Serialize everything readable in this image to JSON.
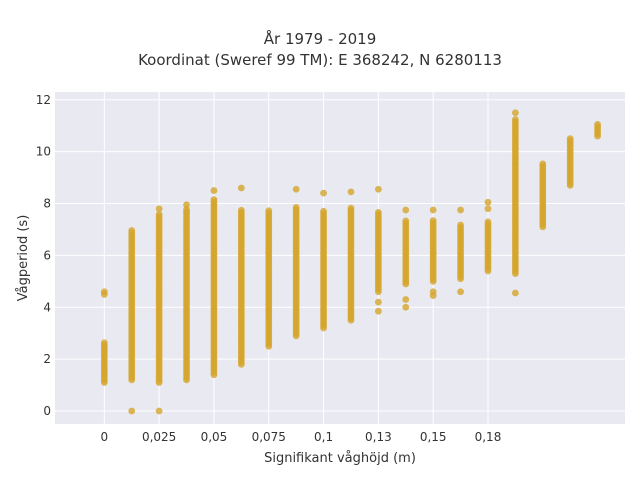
{
  "chart_data": {
    "type": "scatter",
    "title_line1": "År 1979 - 2019",
    "title_line2": "Koordinat (Sweref 99 TM): E 368242, N 6280113",
    "xlabel": "Signifikant våghöjd (m)",
    "ylabel": "Vågperiod (s)",
    "xlim": [
      -0.018,
      0.19
    ],
    "ylim": [
      -0.5,
      12.3
    ],
    "x_ticks": [
      {
        "value": 0,
        "label": "0"
      },
      {
        "value": 0.02,
        "label": "0,025"
      },
      {
        "value": 0.04,
        "label": "0,05"
      },
      {
        "value": 0.06,
        "label": "0,075"
      },
      {
        "value": 0.08,
        "label": "0,1"
      },
      {
        "value": 0.1,
        "label": "0,13"
      },
      {
        "value": 0.12,
        "label": "0,15"
      },
      {
        "value": 0.14,
        "label": "0,18"
      }
    ],
    "y_ticks": [
      {
        "value": 0,
        "label": "0"
      },
      {
        "value": 2,
        "label": "2"
      },
      {
        "value": 4,
        "label": "4"
      },
      {
        "value": 6,
        "label": "6"
      },
      {
        "value": 8,
        "label": "8"
      },
      {
        "value": 10,
        "label": "10"
      },
      {
        "value": 12,
        "label": "12"
      }
    ],
    "grid": true,
    "marker_color": "#d4a52a",
    "background_color": "#e9e9f1",
    "columns": [
      {
        "x": 0,
        "ymin": 1.1,
        "ymax": 2.7,
        "extra": [
          4.5,
          4.6
        ]
      },
      {
        "x": 0.01,
        "ymin": 1.2,
        "ymax": 7.0,
        "extra": [
          0.0
        ]
      },
      {
        "x": 0.02,
        "ymin": 1.1,
        "ymax": 7.6,
        "extra": [
          0.0,
          7.8
        ]
      },
      {
        "x": 0.03,
        "ymin": 1.2,
        "ymax": 7.8,
        "extra": [
          7.95
        ]
      },
      {
        "x": 0.04,
        "ymin": 1.4,
        "ymax": 8.2,
        "extra": [
          8.5
        ]
      },
      {
        "x": 0.05,
        "ymin": 1.8,
        "ymax": 7.8,
        "extra": [
          8.6
        ]
      },
      {
        "x": 0.06,
        "ymin": 2.5,
        "ymax": 7.8,
        "extra": []
      },
      {
        "x": 0.07,
        "ymin": 2.9,
        "ymax": 7.9,
        "extra": [
          8.55
        ]
      },
      {
        "x": 0.08,
        "ymin": 3.2,
        "ymax": 7.7,
        "extra": [
          8.4
        ]
      },
      {
        "x": 0.09,
        "ymin": 3.5,
        "ymax": 7.9,
        "extra": [
          8.45
        ]
      },
      {
        "x": 0.1,
        "ymin": 4.6,
        "ymax": 7.7,
        "extra": [
          3.85,
          4.2,
          8.55
        ]
      },
      {
        "x": 0.11,
        "ymin": 4.9,
        "ymax": 7.4,
        "extra": [
          4.0,
          4.3,
          7.75
        ]
      },
      {
        "x": 0.12,
        "ymin": 5.0,
        "ymax": 7.4,
        "extra": [
          4.45,
          4.6,
          7.75
        ]
      },
      {
        "x": 0.13,
        "ymin": 5.1,
        "ymax": 7.2,
        "extra": [
          4.6,
          7.75
        ]
      },
      {
        "x": 0.14,
        "ymin": 5.4,
        "ymax": 7.3,
        "extra": [
          7.8,
          8.05
        ]
      },
      {
        "x": 0.15,
        "ymin": 5.3,
        "ymax": 11.3,
        "extra": [
          4.55,
          11.5
        ]
      },
      {
        "x": 0.16,
        "ymin": 7.1,
        "ymax": 9.6,
        "extra": []
      },
      {
        "x": 0.17,
        "ymin": 8.7,
        "ymax": 10.5,
        "extra": []
      },
      {
        "x": 0.18,
        "ymin": 10.6,
        "ymax": 11.1,
        "extra": []
      }
    ]
  }
}
